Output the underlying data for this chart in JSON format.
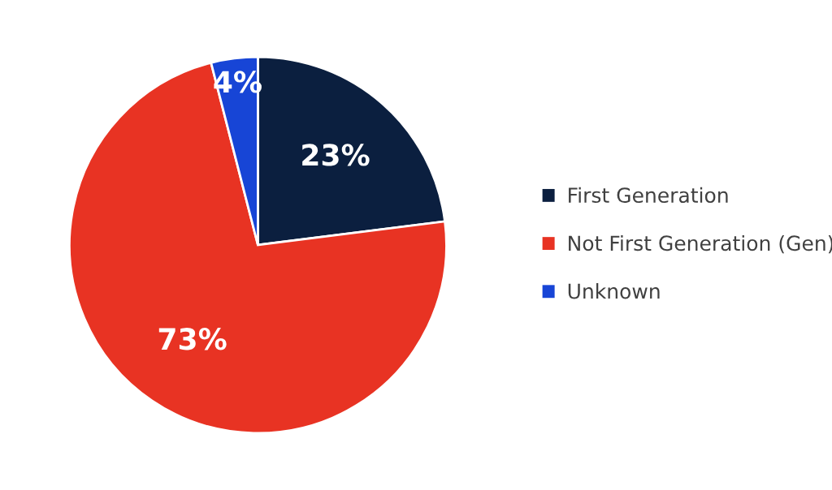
{
  "chart_data": {
    "type": "pie",
    "categories": [
      "First Generation",
      "Not First Generation (Gen)",
      "Unknown"
    ],
    "values": [
      23,
      73,
      4
    ],
    "colors": [
      "#0b1f3f",
      "#e83323",
      "#1745d6"
    ],
    "value_labels": [
      "23%",
      "73%",
      "4%"
    ],
    "legend": "right"
  }
}
